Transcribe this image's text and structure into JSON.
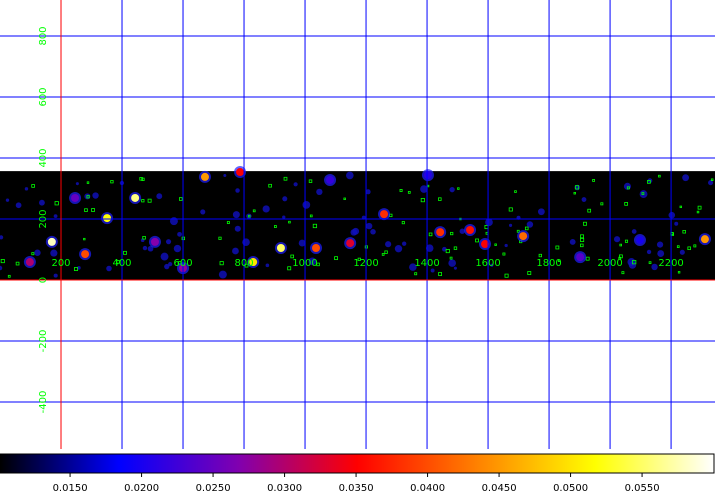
{
  "chart_data": {
    "type": "image",
    "xlim": [
      0,
      2344
    ],
    "ylim": [
      -554,
      918
    ],
    "xticks": [
      200,
      400,
      600,
      800,
      1000,
      1200,
      1400,
      1600,
      1800,
      2000,
      2200
    ],
    "yticks": [
      -400,
      -200,
      0,
      200,
      400,
      600,
      800
    ],
    "grid": true,
    "grid_color": "#0000ff",
    "axis_color": "#ff0000",
    "axis_lines": {
      "x": 200,
      "y": 0
    },
    "label_color": "#00ff00",
    "image_extent": {
      "x": [
        0,
        2344
      ],
      "y": [
        0,
        357
      ]
    },
    "sources": {
      "x": [
        170,
        443,
        351,
        672,
        830,
        921,
        1036,
        1259,
        1590,
        1715,
        2311,
        279,
        98,
        600,
        1541,
        1443,
        1148,
        787,
        508,
        1902,
        1082,
        1403,
        246,
        2098
      ],
      "y": [
        125,
        269,
        203,
        338,
        59,
        105,
        105,
        216,
        118,
        144,
        134,
        85,
        59,
        39,
        164,
        157,
        121,
        354,
        125,
        75,
        328,
        344,
        269,
        131
      ],
      "values": [
        0.058,
        0.056,
        0.052,
        0.045,
        0.05,
        0.055,
        0.04,
        0.038,
        0.035,
        0.042,
        0.045,
        0.04,
        0.03,
        0.028,
        0.036,
        0.038,
        0.033,
        0.035,
        0.027,
        0.024,
        0.022,
        0.021,
        0.025,
        0.02
      ]
    },
    "colorbar": {
      "lim": [
        0.0101,
        0.0601
      ],
      "ticks": [
        {
          "value": 0.015,
          "label": "0.0150"
        },
        {
          "value": 0.02,
          "label": "0.0200"
        },
        {
          "value": 0.025,
          "label": "0.0250"
        },
        {
          "value": 0.03,
          "label": "0.0300"
        },
        {
          "value": 0.035,
          "label": "0.0350"
        },
        {
          "value": 0.04,
          "label": "0.0400"
        },
        {
          "value": 0.045,
          "label": "0.0450"
        },
        {
          "value": 0.05,
          "label": "0.0500"
        },
        {
          "value": 0.055,
          "label": "0.0550"
        }
      ],
      "colormap": [
        "#000000",
        "#0000ff",
        "#8000b0",
        "#ff0000",
        "#ff8000",
        "#ffff00",
        "#ffffff"
      ]
    }
  }
}
